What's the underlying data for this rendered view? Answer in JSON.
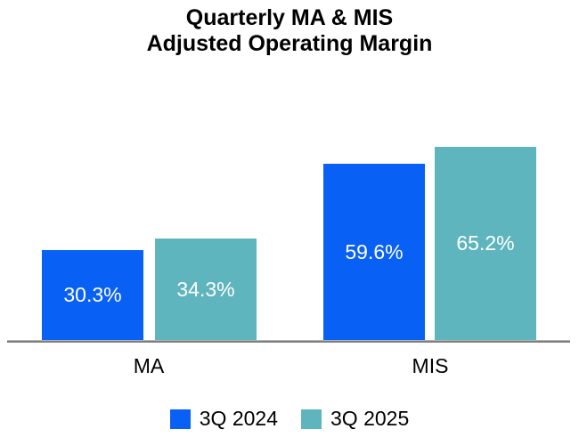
{
  "title_lines": [
    "Quarterly MA & MIS",
    "Adjusted Operating Margin"
  ],
  "chart_data": {
    "type": "bar",
    "title": "Quarterly MA & MIS Adjusted Operating Margin",
    "categories": [
      "MA",
      "MIS"
    ],
    "series": [
      {
        "name": "3Q 2024",
        "color": "#0861f4",
        "values": [
          30.3,
          59.6
        ],
        "labels": [
          "30.3%",
          "59.6%"
        ]
      },
      {
        "name": "3Q 2025",
        "color": "#5fb5bd",
        "values": [
          34.3,
          65.2
        ],
        "labels": [
          "34.3%",
          "65.2%"
        ]
      }
    ],
    "unit": "%",
    "xlabel": "",
    "ylabel": "",
    "ylim": [
      0,
      80
    ],
    "grid": false,
    "legend_position": "bottom",
    "value_label_color": "#ffffff",
    "axis_line_color": "#7f7f7f",
    "background_color": "#ffffff"
  }
}
